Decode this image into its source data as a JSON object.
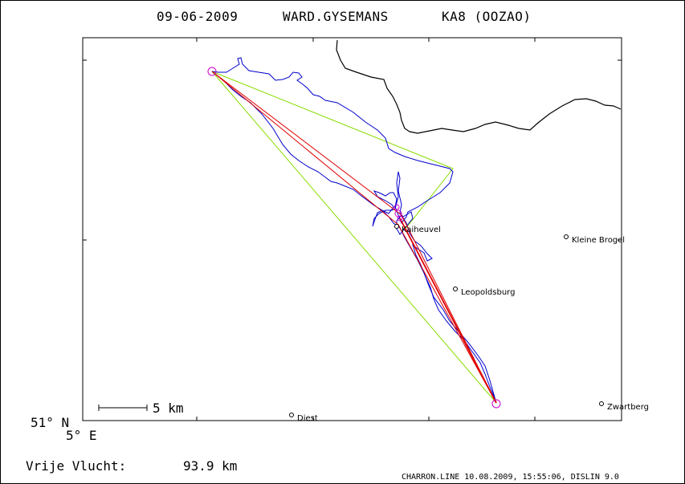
{
  "header": {
    "date": "09-06-2009",
    "pilot": "WARD.GYSEMANS",
    "glider": "KA8 (OOZAO)"
  },
  "map": {
    "latitude_label": "51° N",
    "longitude_label": "5° E",
    "scale_label": "5 km",
    "places": [
      {
        "name": "Kaiheuvel"
      },
      {
        "name": "Kleine Brogel"
      },
      {
        "name": "Leopoldsburg"
      },
      {
        "name": "Diest"
      },
      {
        "name": "Zwartberg"
      }
    ],
    "colors": {
      "track": "#0000cc",
      "task_red": "#e00000",
      "task_green": "#88dd00",
      "turnpoint": "#cc00cc",
      "border": "#000000"
    }
  },
  "footer": {
    "flight_type_label": "Vrije Vlucht:",
    "distance": "93.9 km",
    "credit": "CHARRON.LINE 10.08.2009, 15:55:06, DISLIN 9.0"
  }
}
